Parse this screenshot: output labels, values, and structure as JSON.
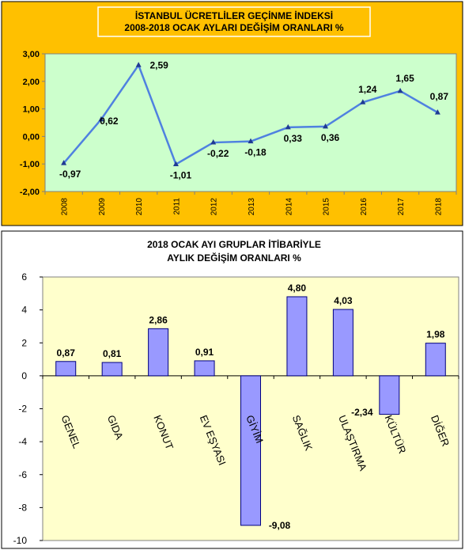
{
  "chart_data": [
    {
      "type": "line",
      "title_line1": "İSTANBUL ÜCRETLİLER GEÇİNME İNDEKSİ",
      "title_line2": "2008-2018 OCAK AYLARI DEĞİŞİM ORANLARI %",
      "x": [
        "2008",
        "2009",
        "2010",
        "2011",
        "2012",
        "2013",
        "2014",
        "2015",
        "2016",
        "2017",
        "2018"
      ],
      "values": [
        -0.97,
        0.62,
        2.59,
        -1.01,
        -0.22,
        -0.18,
        0.33,
        0.36,
        1.24,
        1.65,
        0.87
      ],
      "data_labels": [
        "-0,97",
        "0,62",
        "2,59",
        "-1,01",
        "-0,22",
        "-0,18",
        "0,33",
        "0,36",
        "1,24",
        "1,65",
        "0,87"
      ],
      "ylim": [
        -2,
        3
      ],
      "yticks": [
        3,
        2,
        1,
        0,
        -1,
        -2
      ],
      "ytick_labels": [
        "3,00",
        "2,00",
        "1,00",
        "0,00",
        "-1,00",
        "-2,00"
      ],
      "grid": false,
      "colors": {
        "outer": "#FFC000",
        "plot": "#CCFFCC",
        "line": "#4F81E0",
        "marker": "#1F3A93",
        "title_box": "#FFC000"
      }
    },
    {
      "type": "bar",
      "title_line1": "2018 OCAK AYI GRUPLAR İTİBARİYLE",
      "title_line2": "AYLIK DEĞİŞİM ORANLARI %",
      "categories": [
        "GENEL",
        "GIDA",
        "KONUT",
        "EV EŞYASI",
        "GİYİM",
        "SAĞLIK",
        "ULAŞTIRMA",
        "KÜLTÜR",
        "DİĞER"
      ],
      "values": [
        0.87,
        0.81,
        2.86,
        0.91,
        -9.08,
        4.8,
        4.03,
        -2.34,
        1.98
      ],
      "data_labels": [
        "0,87",
        "0,81",
        "2,86",
        "0,91",
        "-9,08",
        "4,80",
        "4,03",
        "-2,34",
        "1,98"
      ],
      "ylim": [
        -10,
        6
      ],
      "yticks": [
        6,
        4,
        2,
        0,
        -2,
        -4,
        -6,
        -8,
        -10
      ],
      "ytick_labels": [
        "6",
        "4",
        "2",
        "0",
        "-2",
        "-4",
        "-6",
        "-8",
        "-10"
      ],
      "grid": false,
      "colors": {
        "outer": "#FFFFFF",
        "plot": "#FFFFCC",
        "bar": "#9999FF",
        "bar_stroke": "#000080"
      }
    }
  ]
}
